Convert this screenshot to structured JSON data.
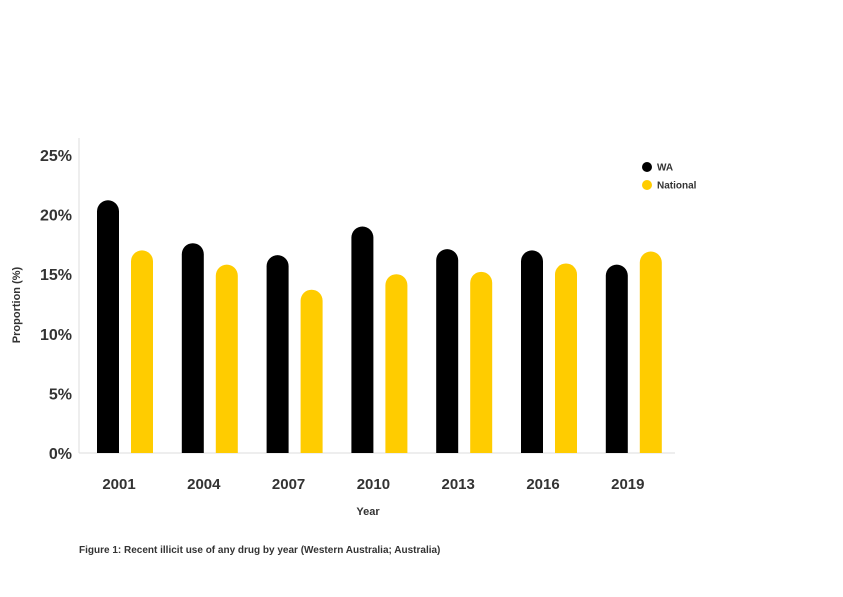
{
  "chart_data": {
    "type": "bar",
    "categories": [
      "2001",
      "2004",
      "2007",
      "2010",
      "2013",
      "2016",
      "2019"
    ],
    "series": [
      {
        "name": "WA",
        "color": "#000000",
        "values": [
          21.2,
          17.6,
          16.6,
          19.0,
          17.1,
          17.0,
          15.8
        ]
      },
      {
        "name": "National",
        "color": "#ffcc00",
        "values": [
          17.0,
          15.8,
          13.7,
          15.0,
          15.2,
          15.9,
          16.9
        ]
      }
    ],
    "y_ticks": [
      "0%",
      "5%",
      "10%",
      "15%",
      "20%",
      "25%"
    ],
    "ylim": [
      0,
      25
    ],
    "xlabel": "Year",
    "ylabel": "Proportion (%)",
    "legend_position": "top-right",
    "grid": false
  },
  "caption": "Figure 1: Recent illicit use of any drug by year (Western Australia; Australia)"
}
